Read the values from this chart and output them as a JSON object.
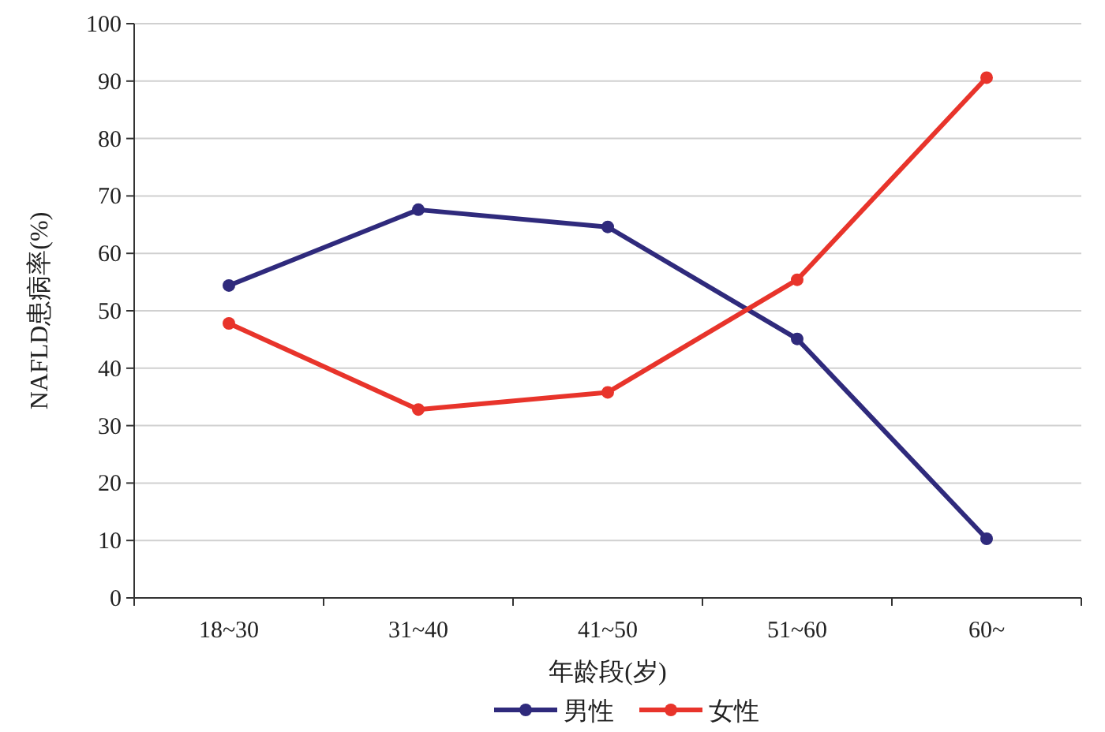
{
  "chart_data": {
    "type": "line",
    "xlabel": "年龄段(岁)",
    "ylabel": "NAFLD患病率(%)",
    "categories": [
      "18~30",
      "31~40",
      "41~50",
      "51~60",
      "60~"
    ],
    "series": [
      {
        "name": "男性",
        "color": "#2f2a7c",
        "values": [
          54.4,
          67.6,
          64.6,
          45.1,
          10.3
        ]
      },
      {
        "name": "女性",
        "color": "#e8342b",
        "values": [
          47.8,
          32.8,
          35.8,
          55.4,
          90.6
        ]
      }
    ],
    "ylim": [
      0,
      100
    ],
    "yticks": [
      0,
      10,
      20,
      30,
      40,
      50,
      60,
      70,
      80,
      90,
      100
    ],
    "grid": "y",
    "legend": "bottom",
    "marker": "circle",
    "line_style": "solid"
  }
}
